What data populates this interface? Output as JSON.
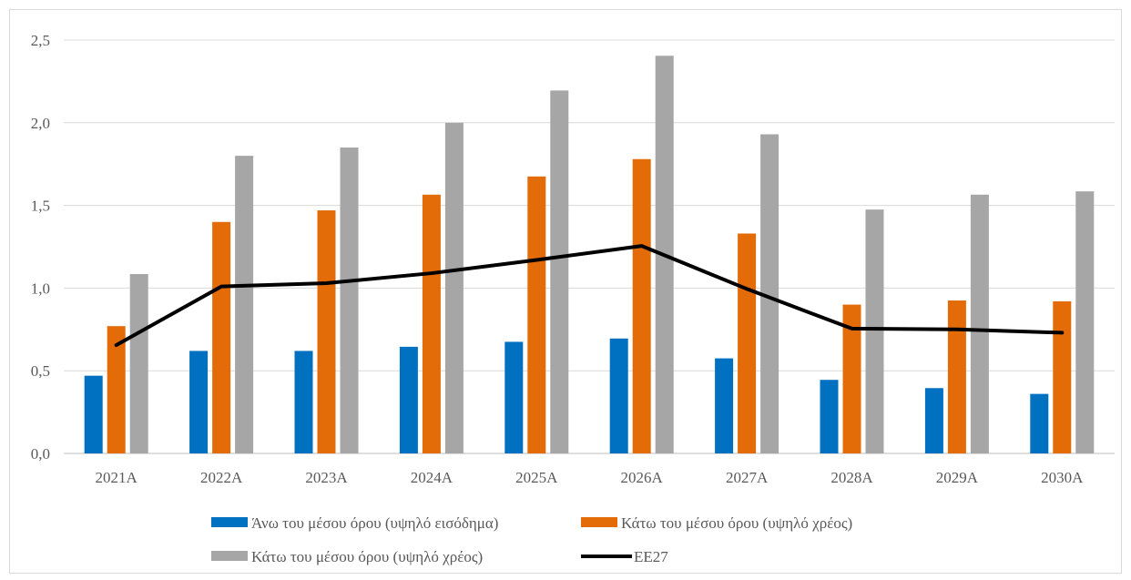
{
  "chart_data": {
    "type": "bar",
    "categories": [
      "2021A",
      "2022A",
      "2023A",
      "2024A",
      "2025A",
      "2026A",
      "2027A",
      "2028A",
      "2029A",
      "2030A"
    ],
    "series": [
      {
        "name": "Άνω του μέσου όρου (υψηλό εισόδημα)",
        "type": "bar",
        "color": "#0070C0",
        "values": [
          0.47,
          0.62,
          0.62,
          0.645,
          0.675,
          0.695,
          0.575,
          0.445,
          0.395,
          0.36
        ]
      },
      {
        "name": "Κάτω του μέσου όρου (υψηλό χρέος)",
        "type": "bar",
        "color": "#E36C09",
        "values": [
          0.77,
          1.4,
          1.47,
          1.565,
          1.675,
          1.78,
          1.33,
          0.9,
          0.925,
          0.92
        ]
      },
      {
        "name": "Κάτω του μέσου όρου (υψηλό χρέος)",
        "type": "bar",
        "color": "#A6A6A6",
        "values": [
          1.085,
          1.8,
          1.85,
          2.0,
          2.195,
          2.405,
          1.93,
          1.475,
          1.565,
          1.585
        ]
      },
      {
        "name": "ΕΕ27",
        "type": "line",
        "color": "#000000",
        "values": [
          0.655,
          1.01,
          1.03,
          1.09,
          1.17,
          1.255,
          0.995,
          0.755,
          0.75,
          0.73
        ]
      }
    ],
    "yticks": [
      "0,0",
      "0,5",
      "1,0",
      "1,5",
      "2,0",
      "2,5"
    ],
    "ylim": [
      0,
      2.5
    ],
    "grid": true,
    "legend_position": "bottom"
  }
}
